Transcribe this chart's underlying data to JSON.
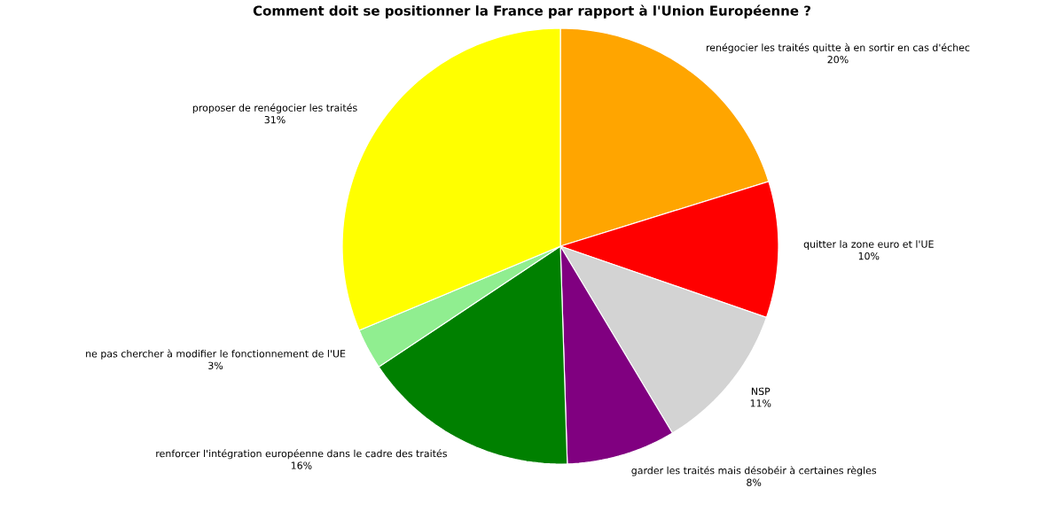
{
  "chart_data": {
    "type": "pie",
    "title": "Comment doit se positionner la France par rapport à l'Union Européenne ?",
    "categories": [
      "renégocier les traités quitte à en sortir en cas d'échec",
      "quitter la zone euro et l'UE",
      "NSP",
      "garder les traités mais désobéir à certaines règles",
      "renforcer l'intégration européenne dans le cadre des traités",
      "ne pas chercher à modifier le fonctionnement de l'UE",
      "proposer de renégocier les traités"
    ],
    "values": [
      20,
      10,
      11,
      8,
      16,
      3,
      31
    ],
    "value_labels": [
      "20%",
      "10%",
      "11%",
      "8%",
      "16%",
      "3%",
      "31%"
    ],
    "colors": [
      "#ffa500",
      "#ff0000",
      "#d3d3d3",
      "#800080",
      "#008000",
      "#90ee90",
      "#ffff00"
    ]
  }
}
